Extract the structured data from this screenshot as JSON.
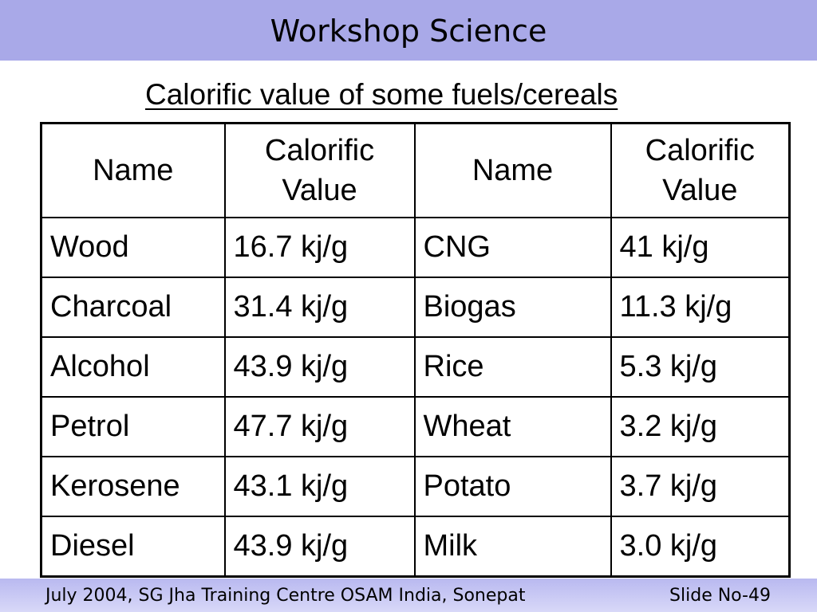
{
  "header": {
    "title": "Workshop Science",
    "background": "#a9a9e8"
  },
  "subtitle": "Calorific value of some fuels/cereals",
  "table": {
    "headers": [
      "Name",
      "Calorific Value",
      "Name",
      "Calorific Value"
    ],
    "rows": [
      [
        "Wood",
        "16.7 kj/g",
        "CNG",
        "41 kj/g"
      ],
      [
        "Charcoal",
        "31.4 kj/g",
        "Biogas",
        "11.3 kj/g"
      ],
      [
        "Alcohol",
        "43.9 kj/g",
        "Rice",
        "5.3 kj/g"
      ],
      [
        "Petrol",
        "47.7 kj/g",
        "Wheat",
        "3.2 kj/g"
      ],
      [
        "Kerosene",
        "43.1 kj/g",
        "Potato",
        "3.7 kj/g"
      ],
      [
        "Diesel",
        "43.9 kj/g",
        "Milk",
        "3.0 kj/g"
      ]
    ]
  },
  "footer": {
    "text": "July 2004, SG Jha Training Centre OSAM India, Sonepat",
    "slide": "Slide No-49"
  }
}
